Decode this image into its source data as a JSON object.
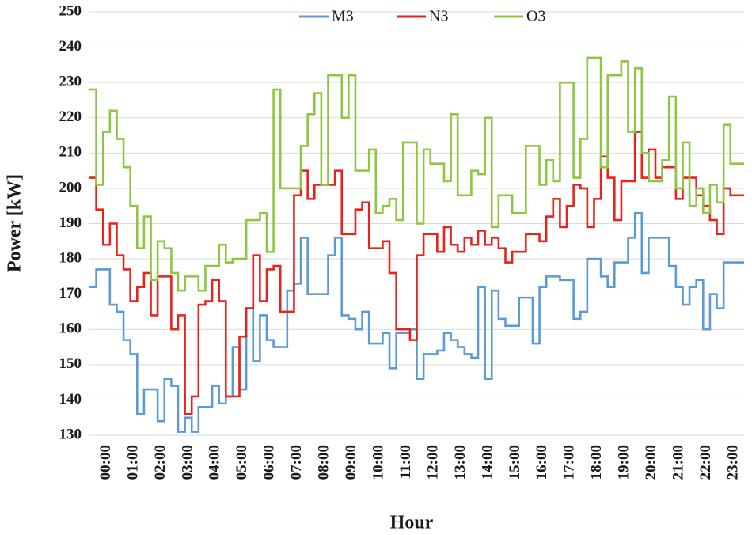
{
  "chart_data": {
    "type": "step",
    "x_label": "Hour",
    "y_label": "Power [kW]",
    "ylim": [
      130,
      250
    ],
    "yticks": [
      130,
      140,
      150,
      160,
      170,
      180,
      190,
      200,
      210,
      220,
      230,
      240,
      250
    ],
    "grid": true,
    "legend": "top",
    "categories": [
      null,
      null,
      "00:00",
      null,
      null,
      null,
      "01:00",
      null,
      null,
      null,
      "02:00",
      null,
      null,
      null,
      "03:00",
      null,
      null,
      null,
      "04:00",
      null,
      null,
      null,
      "05:00",
      null,
      null,
      null,
      "06:00",
      null,
      null,
      null,
      "07:00",
      null,
      null,
      null,
      "08:00",
      null,
      null,
      null,
      "09:00",
      null,
      null,
      null,
      "10:00",
      null,
      null,
      null,
      "11:00",
      null,
      null,
      null,
      "12:00",
      null,
      null,
      null,
      "13:00",
      null,
      null,
      null,
      "14:00",
      null,
      null,
      null,
      "15:00",
      null,
      null,
      null,
      "16:00",
      null,
      null,
      null,
      "17:00",
      null,
      null,
      null,
      "18:00",
      null,
      null,
      null,
      "19:00",
      null,
      null,
      null,
      "20:00",
      null,
      null,
      null,
      "21:00",
      null,
      null,
      null,
      "22:00",
      null,
      null,
      null,
      "23:00",
      null
    ],
    "series": [
      {
        "name": "M3",
        "color": "#5b9bd5",
        "values": [
          172,
          177,
          177,
          167,
          165,
          157,
          153,
          136,
          143,
          143,
          134,
          146,
          144,
          131,
          135,
          131,
          138,
          138,
          144,
          139,
          141,
          155,
          143,
          166,
          151,
          164,
          157,
          155,
          155,
          171,
          173,
          186,
          170,
          170,
          170,
          181,
          186,
          164,
          163,
          160,
          165,
          156,
          156,
          159,
          149,
          159,
          159,
          160,
          146,
          153,
          153,
          154,
          159,
          157,
          155,
          153,
          152,
          172,
          146,
          171,
          163,
          161,
          161,
          169,
          169,
          156,
          172,
          175,
          175,
          174,
          174,
          163,
          165,
          180,
          180,
          175,
          172,
          179,
          179,
          186,
          193,
          176,
          186,
          186,
          186,
          178,
          172,
          167,
          172,
          174,
          160,
          170,
          166,
          179,
          179,
          179
        ]
      },
      {
        "name": "N3",
        "color": "#e8231c",
        "values": [
          203,
          194,
          184,
          190,
          181,
          177,
          168,
          172,
          176,
          164,
          175,
          175,
          160,
          164,
          136,
          141,
          167,
          168,
          174,
          168,
          141,
          141,
          158,
          166,
          181,
          168,
          177,
          178,
          165,
          165,
          198,
          205,
          197,
          201,
          201,
          201,
          205,
          187,
          187,
          194,
          196,
          183,
          183,
          185,
          176,
          160,
          160,
          157,
          181,
          187,
          187,
          182,
          189,
          184,
          182,
          186,
          184,
          188,
          184,
          186,
          183,
          179,
          182,
          182,
          187,
          187,
          185,
          192,
          197,
          189,
          195,
          201,
          200,
          189,
          197,
          209,
          203,
          191,
          202,
          202,
          216,
          203,
          211,
          203,
          206,
          206,
          197,
          203,
          203,
          198,
          195,
          191,
          187,
          200,
          198,
          198
        ]
      },
      {
        "name": "O3",
        "color": "#8dc63f",
        "values": [
          228,
          201,
          216,
          222,
          214,
          206,
          195,
          183,
          192,
          174,
          185,
          183,
          176,
          171,
          175,
          175,
          171,
          178,
          178,
          184,
          179,
          180,
          180,
          191,
          191,
          193,
          182,
          228,
          200,
          200,
          200,
          212,
          221,
          227,
          201,
          232,
          232,
          220,
          232,
          205,
          205,
          211,
          193,
          195,
          197,
          191,
          213,
          213,
          190,
          211,
          207,
          207,
          202,
          221,
          198,
          198,
          205,
          204,
          220,
          189,
          198,
          198,
          193,
          193,
          212,
          212,
          201,
          208,
          202,
          230,
          230,
          203,
          214,
          237,
          237,
          206,
          232,
          232,
          236,
          216,
          234,
          210,
          202,
          202,
          208,
          226,
          200,
          213,
          195,
          200,
          193,
          201,
          196,
          218,
          207,
          207
        ]
      }
    ]
  }
}
